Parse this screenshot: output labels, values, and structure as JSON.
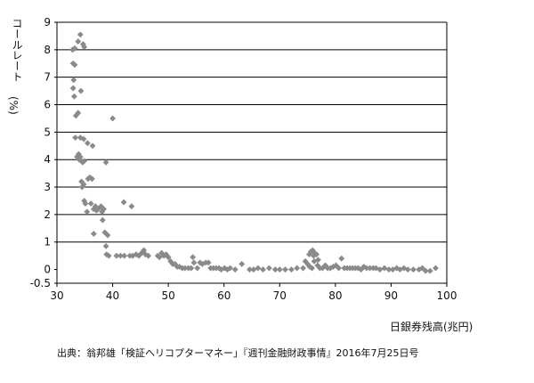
{
  "chart_data": {
    "type": "scatter",
    "title": "",
    "ylabel_main": "コールレート",
    "ylabel_unit": "(%)",
    "xlabel": "日銀券残高(兆円)",
    "xlim": [
      30,
      100
    ],
    "ylim": [
      -0.5,
      9
    ],
    "x_ticks": [
      30,
      40,
      50,
      60,
      70,
      80,
      90,
      100
    ],
    "y_ticks": [
      -0.5,
      0,
      1,
      2,
      3,
      4,
      5,
      6,
      7,
      8,
      9
    ],
    "y_tick_labels": [
      "-0.5",
      "0",
      "1",
      "2",
      "3",
      "4",
      "5",
      "6",
      "7",
      "8",
      "9"
    ],
    "gridlines": "horizontal",
    "marker_color": "#8a8a8a",
    "points": [
      [
        32.8,
        8.0
      ],
      [
        33.2,
        8.05
      ],
      [
        33.8,
        8.3
      ],
      [
        34.2,
        8.55
      ],
      [
        34.7,
        8.2
      ],
      [
        34.9,
        8.1
      ],
      [
        32.9,
        7.5
      ],
      [
        33.2,
        7.45
      ],
      [
        33.0,
        6.9
      ],
      [
        32.9,
        6.6
      ],
      [
        33.1,
        6.3
      ],
      [
        34.3,
        6.5
      ],
      [
        33.4,
        5.6
      ],
      [
        33.8,
        5.7
      ],
      [
        33.3,
        4.8
      ],
      [
        34.2,
        4.8
      ],
      [
        34.8,
        4.75
      ],
      [
        35.5,
        4.6
      ],
      [
        36.4,
        4.5
      ],
      [
        33.9,
        4.2
      ],
      [
        33.6,
        4.1
      ],
      [
        34.0,
        4.0
      ],
      [
        34.2,
        4.1
      ],
      [
        34.6,
        3.9
      ],
      [
        34.9,
        3.95
      ],
      [
        38.8,
        3.9
      ],
      [
        40.0,
        5.5
      ],
      [
        34.4,
        3.2
      ],
      [
        34.8,
        3.1
      ],
      [
        34.5,
        3.0
      ],
      [
        35.6,
        3.3
      ],
      [
        35.9,
        3.35
      ],
      [
        36.3,
        3.3
      ],
      [
        34.9,
        2.5
      ],
      [
        35.1,
        2.4
      ],
      [
        35.4,
        2.1
      ],
      [
        36.1,
        2.4
      ],
      [
        36.6,
        2.2
      ],
      [
        36.9,
        2.3
      ],
      [
        37.1,
        2.15
      ],
      [
        37.4,
        2.2
      ],
      [
        37.9,
        2.3
      ],
      [
        38.1,
        2.1
      ],
      [
        38.4,
        2.2
      ],
      [
        38.2,
        1.8
      ],
      [
        42.0,
        2.45
      ],
      [
        43.4,
        2.3
      ],
      [
        36.6,
        1.3
      ],
      [
        38.6,
        1.35
      ],
      [
        39.1,
        1.25
      ],
      [
        38.8,
        0.85
      ],
      [
        38.9,
        0.55
      ],
      [
        39.3,
        0.5
      ],
      [
        40.7,
        0.5
      ],
      [
        41.4,
        0.5
      ],
      [
        42.1,
        0.5
      ],
      [
        43.1,
        0.5
      ],
      [
        43.6,
        0.5
      ],
      [
        44.2,
        0.55
      ],
      [
        44.7,
        0.5
      ],
      [
        45.2,
        0.6
      ],
      [
        45.6,
        0.7
      ],
      [
        45.9,
        0.55
      ],
      [
        46.4,
        0.5
      ],
      [
        48.1,
        0.5
      ],
      [
        48.4,
        0.45
      ],
      [
        48.8,
        0.6
      ],
      [
        49.2,
        0.5
      ],
      [
        49.6,
        0.55
      ],
      [
        50.0,
        0.45
      ],
      [
        50.4,
        0.3
      ],
      [
        50.8,
        0.2
      ],
      [
        51.2,
        0.2
      ],
      [
        51.6,
        0.1
      ],
      [
        52.0,
        0.1
      ],
      [
        52.5,
        0.05
      ],
      [
        53.0,
        0.05
      ],
      [
        53.6,
        0.05
      ],
      [
        54.1,
        0.05
      ],
      [
        54.4,
        0.45
      ],
      [
        54.6,
        0.25
      ],
      [
        55.2,
        0.05
      ],
      [
        55.7,
        0.25
      ],
      [
        56.1,
        0.2
      ],
      [
        56.7,
        0.25
      ],
      [
        57.2,
        0.25
      ],
      [
        57.6,
        0.05
      ],
      [
        58.1,
        0.05
      ],
      [
        58.6,
        0.05
      ],
      [
        59.1,
        0.05
      ],
      [
        59.5,
        0.0
      ],
      [
        60.1,
        0.05
      ],
      [
        60.6,
        0.0
      ],
      [
        61.1,
        0.05
      ],
      [
        62.0,
        0.0
      ],
      [
        63.2,
        0.2
      ],
      [
        64.6,
        0.0
      ],
      [
        65.3,
        0.0
      ],
      [
        66.1,
        0.05
      ],
      [
        67.0,
        0.0
      ],
      [
        68.1,
        0.05
      ],
      [
        69.2,
        0.0
      ],
      [
        70.0,
        0.0
      ],
      [
        71.0,
        0.0
      ],
      [
        72.1,
        0.0
      ],
      [
        73.1,
        0.05
      ],
      [
        74.2,
        0.05
      ],
      [
        74.6,
        0.3
      ],
      [
        75.0,
        0.2
      ],
      [
        75.3,
        0.55
      ],
      [
        75.6,
        0.65
      ],
      [
        75.9,
        0.7
      ],
      [
        76.1,
        0.5
      ],
      [
        76.3,
        0.6
      ],
      [
        76.6,
        0.55
      ],
      [
        76.9,
        0.35
      ],
      [
        75.4,
        0.1
      ],
      [
        75.8,
        0.05
      ],
      [
        76.2,
        0.3
      ],
      [
        76.8,
        0.15
      ],
      [
        77.2,
        0.05
      ],
      [
        77.7,
        0.05
      ],
      [
        78.2,
        0.15
      ],
      [
        78.6,
        0.05
      ],
      [
        79.1,
        0.05
      ],
      [
        79.6,
        0.1
      ],
      [
        80.1,
        0.15
      ],
      [
        80.6,
        0.05
      ],
      [
        81.1,
        0.4
      ],
      [
        81.6,
        0.05
      ],
      [
        82.1,
        0.05
      ],
      [
        82.6,
        0.05
      ],
      [
        83.1,
        0.05
      ],
      [
        83.6,
        0.05
      ],
      [
        84.1,
        0.05
      ],
      [
        84.6,
        0.0
      ],
      [
        85.1,
        0.1
      ],
      [
        85.6,
        0.05
      ],
      [
        86.2,
        0.05
      ],
      [
        86.8,
        0.05
      ],
      [
        87.3,
        0.05
      ],
      [
        88.0,
        0.0
      ],
      [
        88.8,
        0.05
      ],
      [
        89.6,
        0.0
      ],
      [
        90.3,
        0.0
      ],
      [
        91.0,
        0.05
      ],
      [
        91.6,
        0.0
      ],
      [
        92.3,
        0.05
      ],
      [
        93.0,
        0.0
      ],
      [
        94.0,
        0.0
      ],
      [
        95.0,
        0.0
      ],
      [
        95.6,
        0.05
      ],
      [
        96.2,
        -0.05
      ],
      [
        97.0,
        -0.05
      ],
      [
        98.0,
        0.05
      ]
    ]
  },
  "source_note": "出典：翁邦雄「検証ヘリコプターマネー」『週刊金融財政事情』2016年7月25日号"
}
